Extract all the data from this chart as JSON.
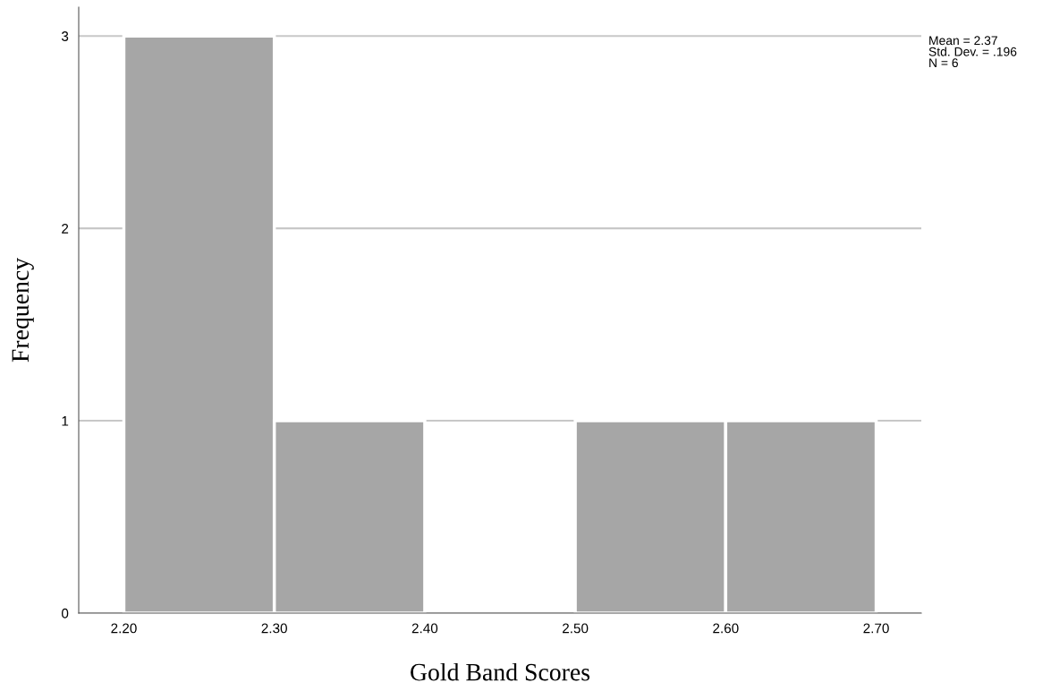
{
  "chart_data": {
    "type": "histogram",
    "xlabel": "Gold Band Scores",
    "ylabel": "Frequency",
    "bins": [
      2.2,
      2.3,
      2.4,
      2.5,
      2.6,
      2.7
    ],
    "values": [
      3,
      1,
      0,
      1,
      1
    ],
    "color": "#a6a6a6",
    "xlim": [
      2.17,
      2.73
    ],
    "xticks": [
      {
        "value": 2.2,
        "label": "2.20"
      },
      {
        "value": 2.3,
        "label": "2.30"
      },
      {
        "value": 2.4,
        "label": "2.40"
      },
      {
        "value": 2.5,
        "label": "2.50"
      },
      {
        "value": 2.6,
        "label": "2.60"
      },
      {
        "value": 2.7,
        "label": "2.70"
      }
    ],
    "ylim": [
      0,
      3.15
    ],
    "yticks": [
      0,
      1,
      2,
      3
    ],
    "grid": "y",
    "annotations": [
      "Mean = 2.37\nStd. Dev. = .196\nN = 6"
    ]
  }
}
